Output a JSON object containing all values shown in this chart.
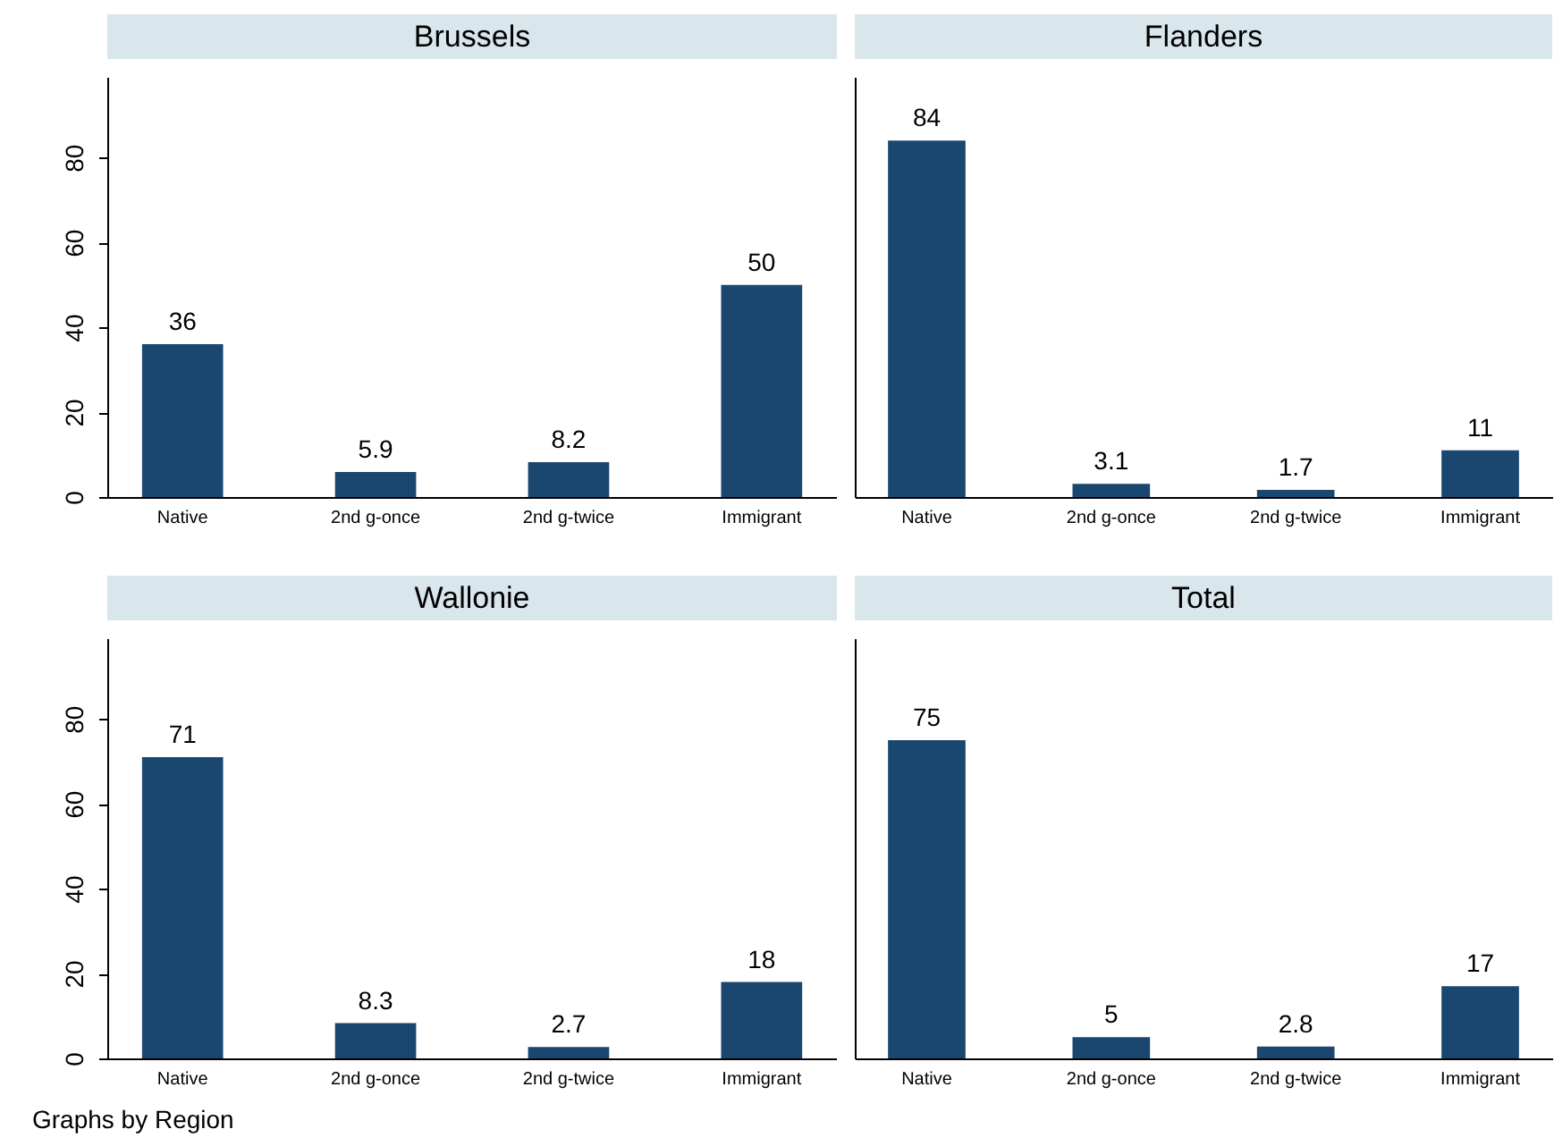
{
  "chart_data": [
    {
      "type": "bar",
      "title": "Brussels",
      "categories": [
        "Native",
        "2nd g-once",
        "2nd g-twice",
        "Immigrant"
      ],
      "values": [
        36,
        5.9,
        8.2,
        50
      ],
      "color": "#1a476f",
      "ylim": [
        0,
        99
      ],
      "yticks": [
        0,
        20,
        40,
        60,
        80
      ],
      "data_labels": true,
      "tick_labels": "xy"
    },
    {
      "type": "bar",
      "title": "Flanders",
      "categories": [
        "Native",
        "2nd g-once",
        "2nd g-twice",
        "Immigrant"
      ],
      "values": [
        84,
        3.1,
        1.7,
        11
      ],
      "color": "#1a476f",
      "ylim": [
        0,
        99
      ],
      "yticks": [
        0,
        20,
        40,
        60,
        80
      ],
      "data_labels": true,
      "tick_labels": "x"
    },
    {
      "type": "bar",
      "title": "Wallonie",
      "categories": [
        "Native",
        "2nd g-once",
        "2nd g-twice",
        "Immigrant"
      ],
      "values": [
        71,
        8.3,
        2.7,
        18
      ],
      "color": "#1a476f",
      "ylim": [
        0,
        99
      ],
      "yticks": [
        0,
        20,
        40,
        60,
        80
      ],
      "data_labels": true,
      "tick_labels": "xy",
      "annotations": [
        "Graphs by Region"
      ]
    },
    {
      "type": "bar",
      "title": "Total",
      "categories": [
        "Native",
        "2nd g-once",
        "2nd g-twice",
        "Immigrant"
      ],
      "values": [
        75,
        5,
        2.8,
        17
      ],
      "color": "#1a476f",
      "ylim": [
        0,
        99
      ],
      "yticks": [
        0,
        20,
        40,
        60,
        80
      ],
      "data_labels": true,
      "tick_labels": "x"
    }
  ]
}
